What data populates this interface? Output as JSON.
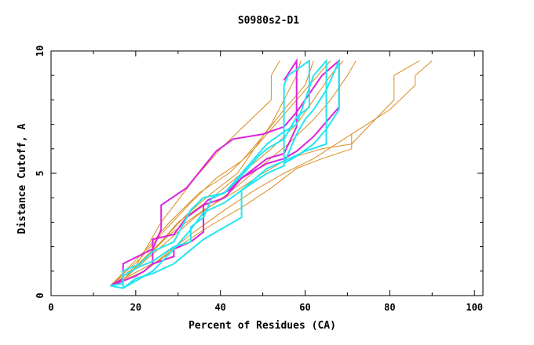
{
  "chart_data": {
    "type": "line",
    "title": "S0980s2-D1",
    "xlabel": "Percent of Residues (CA)",
    "ylabel": "Distance Cutoff, A",
    "xlim": [
      0,
      102
    ],
    "ylim": [
      0,
      10
    ],
    "x_ticks": [
      0,
      20,
      40,
      60,
      80,
      100
    ],
    "y_ticks": [
      0,
      5,
      10
    ],
    "grid": false,
    "legend": "none",
    "colors": {
      "orange": "#d98c1f",
      "magenta": "#dd22dd",
      "cyan": "#22e6f0"
    },
    "series": [
      {
        "color": "orange",
        "width": 1,
        "points": [
          [
            14,
            0.4
          ],
          [
            20,
            1.2
          ],
          [
            26,
            2.2
          ],
          [
            32,
            3.3
          ],
          [
            38,
            4.2
          ],
          [
            44,
            5.0
          ],
          [
            48,
            6.0
          ],
          [
            52,
            7.0
          ],
          [
            55,
            8.0
          ],
          [
            58,
            9.0
          ],
          [
            59,
            9.6
          ]
        ]
      },
      {
        "color": "orange",
        "width": 1,
        "points": [
          [
            14,
            0.4
          ],
          [
            21,
            1.5
          ],
          [
            27,
            2.7
          ],
          [
            33,
            3.8
          ],
          [
            39,
            4.8
          ],
          [
            45,
            5.5
          ],
          [
            50,
            6.5
          ],
          [
            55,
            7.6
          ],
          [
            60,
            8.6
          ],
          [
            62,
            9.6
          ]
        ]
      },
      {
        "color": "orange",
        "width": 1,
        "points": [
          [
            14,
            0.4
          ],
          [
            22,
            1.8
          ],
          [
            28,
            3.0
          ],
          [
            35,
            4.2
          ],
          [
            42,
            5.0
          ],
          [
            48,
            6.0
          ],
          [
            53,
            7.0
          ],
          [
            58,
            8.0
          ],
          [
            62,
            8.8
          ],
          [
            66,
            9.6
          ]
        ]
      },
      {
        "color": "orange",
        "width": 1,
        "points": [
          [
            16,
            0.5
          ],
          [
            24,
            1.8
          ],
          [
            30,
            3.0
          ],
          [
            38,
            4.0
          ],
          [
            45,
            5.0
          ],
          [
            52,
            6.0
          ],
          [
            58,
            7.0
          ],
          [
            62,
            8.0
          ],
          [
            66,
            9.0
          ],
          [
            69,
            9.6
          ]
        ]
      },
      {
        "color": "orange",
        "width": 1,
        "points": [
          [
            18,
            0.8
          ],
          [
            26,
            2.0
          ],
          [
            34,
            3.2
          ],
          [
            42,
            4.2
          ],
          [
            49,
            5.2
          ],
          [
            56,
            6.2
          ],
          [
            62,
            7.2
          ],
          [
            66,
            8.0
          ],
          [
            70,
            9.0
          ],
          [
            72,
            9.6
          ]
        ]
      },
      {
        "color": "orange",
        "width": 1,
        "points": [
          [
            21,
            1.3
          ],
          [
            28,
            2.5
          ],
          [
            36,
            3.5
          ],
          [
            44,
            4.3
          ],
          [
            50,
            5.0
          ],
          [
            56,
            5.6
          ],
          [
            64,
            6.0
          ],
          [
            71,
            6.2
          ],
          [
            81,
            8.0
          ],
          [
            81,
            9.0
          ],
          [
            87,
            9.6
          ]
        ]
      },
      {
        "color": "orange",
        "width": 1,
        "points": [
          [
            14,
            0.4
          ],
          [
            25,
            1.4
          ],
          [
            33,
            2.5
          ],
          [
            41,
            3.5
          ],
          [
            48,
            4.3
          ],
          [
            55,
            5.0
          ],
          [
            62,
            5.6
          ],
          [
            71,
            6.6
          ],
          [
            80,
            7.6
          ],
          [
            86,
            8.6
          ],
          [
            86,
            9.0
          ],
          [
            90,
            9.6
          ]
        ]
      },
      {
        "color": "orange",
        "width": 1,
        "points": [
          [
            14,
            0.4
          ],
          [
            22,
            1.0
          ],
          [
            30,
            2.0
          ],
          [
            38,
            2.9
          ],
          [
            45,
            3.6
          ],
          [
            52,
            4.4
          ],
          [
            58,
            5.2
          ],
          [
            64,
            5.6
          ],
          [
            71,
            6.0
          ],
          [
            71,
            6.6
          ]
        ]
      },
      {
        "color": "orange",
        "width": 1,
        "points": [
          [
            20,
            1.2
          ],
          [
            26,
            3.0
          ],
          [
            34,
            4.8
          ],
          [
            40,
            6.0
          ],
          [
            46,
            7.0
          ],
          [
            52,
            8.0
          ],
          [
            52,
            9.0
          ],
          [
            54,
            9.6
          ]
        ]
      },
      {
        "color": "magenta",
        "width": 2,
        "points": [
          [
            14,
            0.4
          ],
          [
            17,
            0.7
          ],
          [
            17,
            1.3
          ],
          [
            24,
            1.9
          ],
          [
            26,
            2.7
          ],
          [
            26,
            3.7
          ],
          [
            32,
            4.4
          ],
          [
            39,
            5.9
          ],
          [
            43,
            6.4
          ],
          [
            50,
            6.6
          ],
          [
            55,
            6.9
          ],
          [
            58,
            7.5
          ],
          [
            62,
            8.5
          ],
          [
            64,
            9.0
          ],
          [
            68,
            9.6
          ],
          [
            68,
            7.7
          ],
          [
            62,
            6.5
          ],
          [
            58,
            5.9
          ],
          [
            55,
            5.6
          ],
          [
            51,
            5.4
          ],
          [
            45,
            4.8
          ],
          [
            42,
            4.3
          ],
          [
            37,
            3.9
          ],
          [
            36,
            3.7
          ],
          [
            36,
            2.6
          ],
          [
            33,
            2.2
          ],
          [
            29,
            1.9
          ],
          [
            29,
            1.6
          ],
          [
            24,
            1.3
          ],
          [
            22,
            1.0
          ],
          [
            20,
            0.8
          ],
          [
            17,
            0.6
          ],
          [
            14,
            0.4
          ]
        ]
      },
      {
        "color": "magenta",
        "width": 2,
        "points": [
          [
            55,
            8.8
          ],
          [
            58,
            9.6
          ],
          [
            58,
            6.9
          ],
          [
            55,
            5.8
          ],
          [
            51,
            5.6
          ],
          [
            48,
            5.2
          ],
          [
            45,
            4.8
          ],
          [
            41,
            4.0
          ],
          [
            36,
            3.7
          ],
          [
            32,
            3.2
          ],
          [
            29,
            2.5
          ],
          [
            24,
            2.3
          ],
          [
            24,
            1.3
          ]
        ]
      },
      {
        "color": "cyan",
        "width": 2,
        "points": [
          [
            14,
            0.4
          ],
          [
            17,
            0.5
          ],
          [
            17,
            1.0
          ],
          [
            21,
            1.3
          ],
          [
            24,
            1.8
          ],
          [
            29,
            2.2
          ],
          [
            33,
            3.5
          ],
          [
            36,
            4.0
          ],
          [
            41,
            4.2
          ],
          [
            45,
            4.9
          ],
          [
            49,
            5.7
          ],
          [
            51,
            6.0
          ],
          [
            55,
            6.4
          ],
          [
            58,
            7.3
          ],
          [
            61,
            7.7
          ],
          [
            61,
            9.6
          ],
          [
            56,
            9.0
          ],
          [
            55,
            8.6
          ],
          [
            55,
            5.3
          ],
          [
            51,
            5.0
          ],
          [
            45,
            4.3
          ],
          [
            45,
            3.2
          ],
          [
            41,
            2.8
          ],
          [
            36,
            2.3
          ],
          [
            29,
            1.3
          ],
          [
            24,
            0.9
          ],
          [
            20,
            0.7
          ],
          [
            17,
            0.3
          ],
          [
            14,
            0.4
          ]
        ]
      },
      {
        "color": "cyan",
        "width": 2,
        "points": [
          [
            17,
            0.3
          ],
          [
            24,
            1.0
          ],
          [
            29,
            1.9
          ],
          [
            33,
            2.7
          ],
          [
            36,
            3.4
          ],
          [
            41,
            3.8
          ],
          [
            45,
            4.3
          ],
          [
            51,
            5.2
          ],
          [
            55,
            5.5
          ],
          [
            60,
            5.9
          ],
          [
            65,
            6.2
          ],
          [
            65,
            9.6
          ],
          [
            62,
            9.0
          ],
          [
            60,
            8.0
          ],
          [
            58,
            7.0
          ],
          [
            55,
            6.7
          ],
          [
            51,
            6.2
          ],
          [
            49,
            5.8
          ],
          [
            45,
            5.0
          ],
          [
            41,
            4.2
          ],
          [
            38,
            4.0
          ],
          [
            36,
            3.2
          ],
          [
            33,
            2.8
          ],
          [
            33,
            2.2
          ],
          [
            29,
            2.0
          ],
          [
            24,
            1.4
          ],
          [
            21,
            1.2
          ],
          [
            17,
            0.8
          ],
          [
            17,
            0.3
          ]
        ]
      },
      {
        "color": "cyan",
        "width": 2,
        "points": [
          [
            55,
            5.4
          ],
          [
            58,
            6.6
          ],
          [
            60,
            7.2
          ],
          [
            62,
            7.6
          ],
          [
            65,
            8.4
          ],
          [
            68,
            9.6
          ],
          [
            68,
            7.6
          ],
          [
            65,
            6.8
          ],
          [
            62,
            6.2
          ],
          [
            58,
            5.7
          ],
          [
            55,
            5.4
          ]
        ]
      }
    ]
  }
}
